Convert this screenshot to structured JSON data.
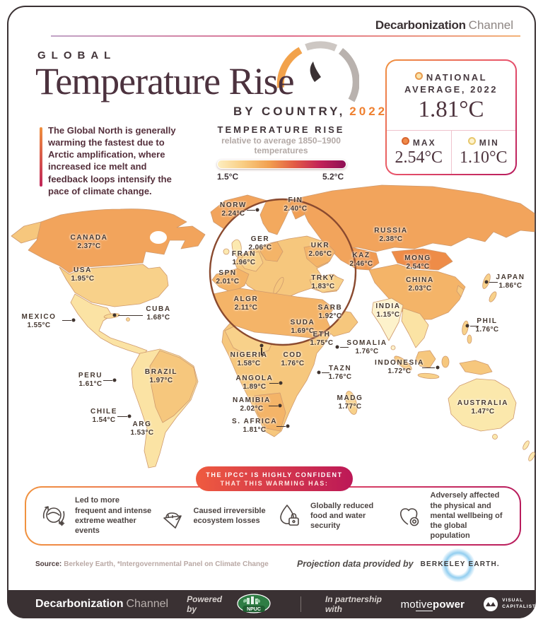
{
  "brand": {
    "bold": "Decarbonization",
    "light": "Channel"
  },
  "title": {
    "kicker": "GLOBAL",
    "main": "Temperature Rise",
    "sub": "BY COUNTRY,",
    "year": "2022"
  },
  "intro": "The Global North is generally warming the fastest due to Arctic amplification, where increased ice melt and feedback loops intensify the pace of climate change.",
  "legend": {
    "title": "TEMPERATURE RISE",
    "subtitle": "relative to average 1850–1900 temperatures",
    "min": "1.5°C",
    "max": "5.2°C"
  },
  "stats": {
    "avg_label_line1": "NATIONAL",
    "avg_label_line2": "AVERAGE, 2022",
    "avg_value": "1.81°C",
    "max_label": "MAX",
    "max_value": "2.54°C",
    "min_label": "MIN",
    "min_value": "1.10°C"
  },
  "map": {
    "countries": [
      {
        "name": "CANADA",
        "temp": "2.37°C"
      },
      {
        "name": "USA",
        "temp": "1.95°C"
      },
      {
        "name": "MEXICO",
        "temp": "1.55°C"
      },
      {
        "name": "CUBA",
        "temp": "1.68°C"
      },
      {
        "name": "PERU",
        "temp": "1.61°C"
      },
      {
        "name": "BRAZIL",
        "temp": "1.97°C"
      },
      {
        "name": "CHILE",
        "temp": "1.54°C"
      },
      {
        "name": "ARG",
        "temp": "1.53°C"
      },
      {
        "name": "NORW",
        "temp": "2.24°C"
      },
      {
        "name": "FIN",
        "temp": "2.40°C"
      },
      {
        "name": "GER",
        "temp": "2.06°C"
      },
      {
        "name": "UKR",
        "temp": "2.06°C"
      },
      {
        "name": "FRAN",
        "temp": "1.96°C"
      },
      {
        "name": "SPN",
        "temp": "2.01°C"
      },
      {
        "name": "TRKY",
        "temp": "1.83°C"
      },
      {
        "name": "ALGR",
        "temp": "2.11°C"
      },
      {
        "name": "RUSSIA",
        "temp": "2.38°C"
      },
      {
        "name": "KAZ",
        "temp": "2.46°C"
      },
      {
        "name": "MONG",
        "temp": "2.54°C"
      },
      {
        "name": "CHINA",
        "temp": "2.03°C"
      },
      {
        "name": "INDIA",
        "temp": "1.15°C"
      },
      {
        "name": "JAPAN",
        "temp": "1.86°C"
      },
      {
        "name": "PHIL",
        "temp": "1.76°C"
      },
      {
        "name": "SARB",
        "temp": "1.92°C"
      },
      {
        "name": "SUDA",
        "temp": "1.69°C"
      },
      {
        "name": "ETH",
        "temp": "1.75°C"
      },
      {
        "name": "SOMALIA",
        "temp": "1.76°C"
      },
      {
        "name": "NIGERIA",
        "temp": "1.58°C"
      },
      {
        "name": "COD",
        "temp": "1.76°C"
      },
      {
        "name": "TAZN",
        "temp": "1.76°C"
      },
      {
        "name": "ANGOLA",
        "temp": "1.89°C"
      },
      {
        "name": "NAMIBIA",
        "temp": "2.02°C"
      },
      {
        "name": "MADG",
        "temp": "1.77°C"
      },
      {
        "name": "S. AFRICA",
        "temp": "1.81°C"
      },
      {
        "name": "INDONESIA",
        "temp": "1.72°C"
      },
      {
        "name": "AUSTRALIA",
        "temp": "1.47°C"
      }
    ]
  },
  "ipcc": {
    "line1": "THE IPCC* IS HIGHLY CONFIDENT",
    "line2": "THAT THIS WARMING HAS:",
    "items": [
      {
        "icon": "extreme-weather-icon",
        "text": "Led to more frequent and intense extreme weather events"
      },
      {
        "icon": "polar-bear-icon",
        "text": "Caused irreversible ecosystem losses"
      },
      {
        "icon": "water-security-icon",
        "text": "Globally reduced food and water security"
      },
      {
        "icon": "heart-wellbeing-icon",
        "text": "Adversely affected the physical and mental wellbeing of the global population"
      }
    ]
  },
  "source": {
    "label": "Source:",
    "text": "Berkeley Earth, *Intergovernmental Panel on Climate Change",
    "projection_prefix": "Projection data provided by",
    "projection_brand": "BERKELEY EARTH."
  },
  "footer": {
    "brand_bold": "Decarbonization",
    "brand_light": "Channel",
    "powered_by": "Powered by",
    "npuc": "NPUC",
    "partnership": "In partnership with",
    "motive_a": "mo",
    "motive_b": "tive",
    "motive_c": "power",
    "vc_line1": "VISUAL",
    "vc_line2": "CAPITALIST"
  },
  "colors": {
    "accent_orange": "#ef8030",
    "magenta": "#b81b5c",
    "footer_bg": "#3a3133",
    "map_min": "#fdf2cb",
    "map_max": "#ee8c48",
    "legend_gradient": [
      "#fdeec0",
      "#f9cd82",
      "#f2a050",
      "#e25b45",
      "#c22258",
      "#8e1055"
    ]
  }
}
